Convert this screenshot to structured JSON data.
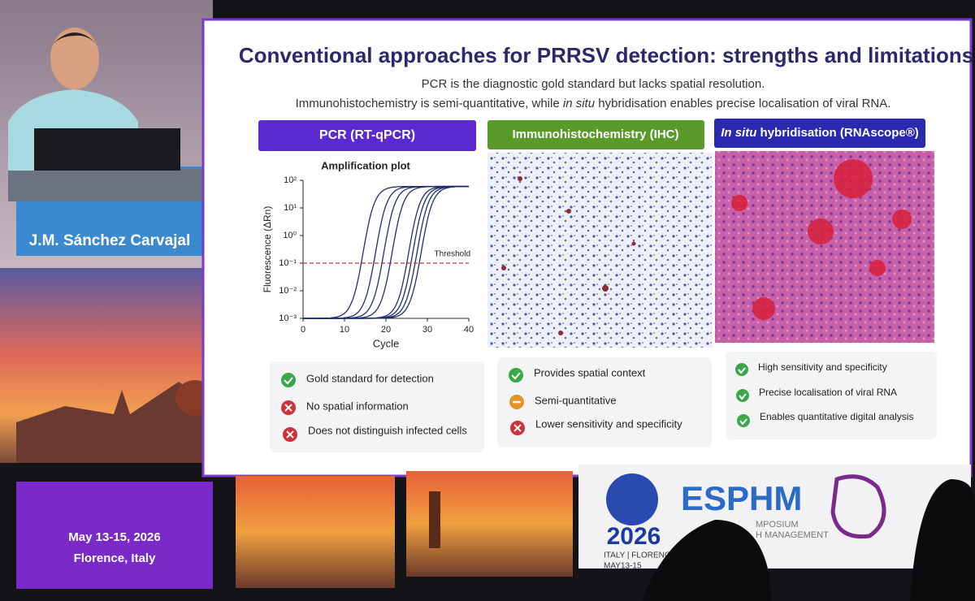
{
  "slide": {
    "title": "Conventional approaches for PRRSV detection: strengths and limitations",
    "subtitle_1": "PCR is the diagnostic gold standard but lacks spatial resolution.",
    "subtitle_2": [
      "Immunohistochemistry is semi-quantitative, while ",
      "in situ",
      " hybridisation enables precise localisation of viral RNA."
    ],
    "columns": [
      {
        "header": "PCR (RT-qPCR)",
        "bullets": [
          "Gold standard for detection",
          "No spatial information",
          "Does not distinguish infected cells"
        ]
      },
      {
        "header": "Immunohistochemistry (IHC)",
        "bullets": [
          "Provides spatial context",
          "Semi-quantitative",
          "Lower sensitivity and specificity"
        ]
      },
      {
        "header": [
          "In situ",
          " hybridisation (RNAscope®)"
        ],
        "bullets": [
          "High sensitivity and specificity",
          "Precise localisation of viral RNA",
          "Enables quantitative digital analysis"
        ]
      }
    ],
    "plot": {
      "type": "line",
      "title": "Amplification plot",
      "x_label": "Cycle",
      "y_label": "Fluorescence (ΔRn)",
      "log_y": true,
      "xlim": [
        0,
        40
      ],
      "xticks": [
        0,
        10,
        20,
        30,
        40
      ],
      "ylim": [
        0.001,
        100
      ],
      "yticks": [
        {
          "value": 100,
          "label": "10²"
        },
        {
          "value": 10,
          "label": "10¹"
        },
        {
          "value": 1,
          "label": "10⁰"
        },
        {
          "value": 0.1,
          "label": "10⁻¹"
        },
        {
          "value": 0.01,
          "label": "10⁻²"
        },
        {
          "value": 0.001,
          "label": "10⁻³"
        }
      ],
      "threshold": 0.1,
      "threshold_label": "Threshold",
      "threshold_color": "#c0392b",
      "curve_color": "#1f2f6b",
      "curve_midpoints": [
        14.5,
        17.5,
        19.5,
        21.5,
        25.5,
        26.5,
        27.5,
        28.5
      ],
      "curve_plateau": 60
    }
  },
  "speaker": {
    "name": "J.M. Sánchez Carvajal"
  },
  "event": {
    "dates": "May 13-15, 2026",
    "place": "Florence, Italy",
    "logo_year": "2026",
    "logo_place": "ITALY | FLORENCE",
    "logo_dates": "MAY13-15",
    "logo_name": "ESPHM",
    "logo_sub_1": "MPOSIUM",
    "logo_sub_2": "H MANAGEMENT"
  }
}
